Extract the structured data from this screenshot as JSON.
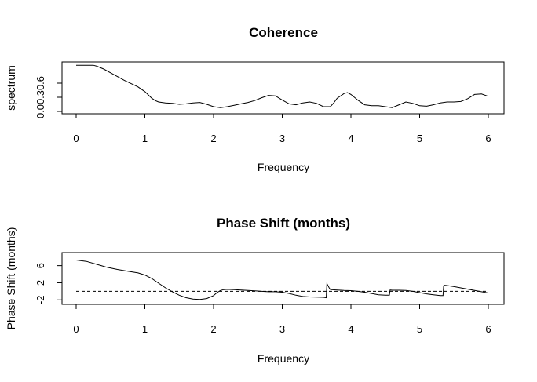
{
  "chart_data": [
    {
      "type": "line",
      "title": "Coherence",
      "xlabel": "Frequency",
      "ylabel": "spectrum",
      "xlim": [
        0,
        6
      ],
      "ylim": [
        0.0,
        1.0
      ],
      "xticks": [
        "0",
        "1",
        "2",
        "3",
        "4",
        "5",
        "6"
      ],
      "yticks": [
        "0.0",
        "0.3",
        "0.6"
      ],
      "ytick_values": [
        0.0,
        0.3,
        0.6
      ],
      "grid": false,
      "series": [
        {
          "color": "#000000",
          "x": [
            0.0,
            0.1,
            0.2,
            0.25,
            0.3,
            0.4,
            0.5,
            0.6,
            0.7,
            0.8,
            0.9,
            1.0,
            1.1,
            1.15,
            1.2,
            1.3,
            1.4,
            1.5,
            1.6,
            1.7,
            1.8,
            1.9,
            2.0,
            2.1,
            2.2,
            2.3,
            2.4,
            2.5,
            2.6,
            2.7,
            2.8,
            2.9,
            3.0,
            3.1,
            3.2,
            3.3,
            3.4,
            3.5,
            3.6,
            3.7,
            3.75,
            3.8,
            3.9,
            3.95,
            4.0,
            4.1,
            4.2,
            4.3,
            4.4,
            4.5,
            4.6,
            4.7,
            4.8,
            4.9,
            5.0,
            5.1,
            5.2,
            5.3,
            5.4,
            5.5,
            5.6,
            5.7,
            5.8,
            5.9,
            6.0
          ],
          "y": [
            0.98,
            0.98,
            0.98,
            0.98,
            0.96,
            0.9,
            0.82,
            0.74,
            0.66,
            0.59,
            0.52,
            0.42,
            0.28,
            0.23,
            0.2,
            0.18,
            0.17,
            0.15,
            0.16,
            0.18,
            0.19,
            0.15,
            0.1,
            0.08,
            0.1,
            0.13,
            0.16,
            0.19,
            0.23,
            0.29,
            0.34,
            0.33,
            0.24,
            0.16,
            0.14,
            0.18,
            0.2,
            0.17,
            0.1,
            0.1,
            0.18,
            0.28,
            0.38,
            0.4,
            0.36,
            0.24,
            0.14,
            0.12,
            0.12,
            0.1,
            0.08,
            0.14,
            0.2,
            0.17,
            0.12,
            0.11,
            0.14,
            0.18,
            0.2,
            0.2,
            0.21,
            0.27,
            0.36,
            0.37,
            0.32
          ]
        }
      ]
    },
    {
      "type": "line",
      "title": "Phase Shift (months)",
      "xlabel": "Frequency",
      "ylabel": "Phase Shift (months)",
      "xlim": [
        0,
        6
      ],
      "ylim": [
        -2.5,
        8.5
      ],
      "xticks": [
        "0",
        "1",
        "2",
        "3",
        "4",
        "5",
        "6"
      ],
      "yticks": [
        "-2",
        "2",
        "6"
      ],
      "ytick_values": [
        -2,
        2,
        6
      ],
      "grid": false,
      "reference_line": {
        "y": 0,
        "style": "dashed"
      },
      "series": [
        {
          "color": "#000000",
          "x": [
            0.0,
            0.15,
            0.3,
            0.45,
            0.6,
            0.75,
            0.9,
            1.0,
            1.1,
            1.2,
            1.3,
            1.4,
            1.5,
            1.6,
            1.7,
            1.8,
            1.9,
            2.0,
            2.05,
            2.1,
            2.15,
            2.2,
            2.3,
            2.4,
            2.5,
            2.6,
            2.7,
            2.8,
            2.9,
            3.0,
            3.1,
            3.2,
            3.3,
            3.4,
            3.5,
            3.6,
            3.64,
            3.65,
            3.66,
            3.68,
            3.7,
            3.8,
            3.9,
            4.0,
            4.1,
            4.2,
            4.3,
            4.4,
            4.5,
            4.56,
            4.57,
            4.6,
            4.7,
            4.8,
            4.9,
            5.0,
            5.1,
            5.2,
            5.3,
            5.34,
            5.35,
            5.36,
            5.4,
            5.5,
            5.6,
            5.7,
            5.8,
            5.9,
            6.0
          ],
          "y": [
            7.3,
            7.0,
            6.3,
            5.6,
            5.1,
            4.7,
            4.3,
            3.8,
            3.0,
            1.9,
            0.8,
            -0.1,
            -0.9,
            -1.5,
            -1.8,
            -1.9,
            -1.7,
            -1.0,
            -0.3,
            0.2,
            0.4,
            0.45,
            0.4,
            0.3,
            0.2,
            0.1,
            0.0,
            -0.1,
            -0.1,
            -0.2,
            -0.5,
            -0.9,
            -1.2,
            -1.3,
            -1.35,
            -1.4,
            -1.5,
            1.8,
            1.5,
            0.9,
            0.4,
            0.3,
            0.2,
            0.15,
            0.0,
            -0.2,
            -0.5,
            -0.8,
            -0.9,
            -0.9,
            0.3,
            0.25,
            0.25,
            0.2,
            0.0,
            -0.3,
            -0.6,
            -0.8,
            -1.0,
            -1.0,
            1.3,
            1.4,
            1.35,
            1.1,
            0.8,
            0.5,
            0.2,
            -0.1,
            -0.4
          ]
        }
      ]
    }
  ]
}
